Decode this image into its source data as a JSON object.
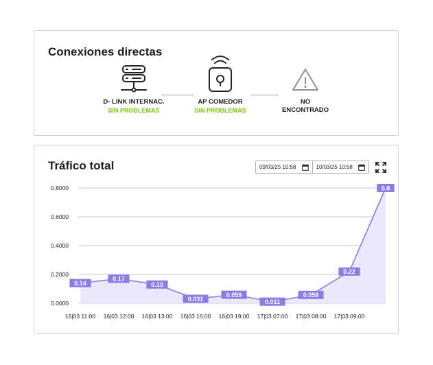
{
  "connections": {
    "title": "Conexiones directas",
    "devices": [
      {
        "name": "D- LINK INTERNAC.",
        "status": "SIN PROBLEMAS",
        "icon": "server-icon"
      },
      {
        "name": "AP COMEDOR",
        "status": "SIN PROBLEMAS",
        "icon": "wifi-lock-icon"
      },
      {
        "name": "NO ENCONTRADO",
        "status": "",
        "icon": "warning-icon"
      }
    ]
  },
  "traffic": {
    "title": "Tráfico total",
    "date_from": "09/03/25 10:58",
    "date_to": "10/03/25 10:58"
  },
  "colors": {
    "ok": "#7ac70c",
    "series": "#8b7ce8",
    "fill": "#ebe8fb"
  },
  "chart_data": {
    "type": "area",
    "categories": [
      "16|03 11:00",
      "16|03 12:00",
      "16|03 13:00",
      "16|03 15:00",
      "16|03 19:00",
      "17|03 07:00",
      "17|03 08:00",
      "17|03 09:00",
      ""
    ],
    "x_ticks": [
      "16|03 11:00",
      "16|03 12:00",
      "16|03 13:00",
      "16|03 15:00",
      "16|03 19:00",
      "17|03 07:00",
      "17|03 08:00",
      "17|03 09:00"
    ],
    "values": [
      0.14,
      0.17,
      0.13,
      0.031,
      0.059,
      0.011,
      0.058,
      0.22,
      0.8
    ],
    "labels": [
      "0.14",
      "0.17",
      "0.13",
      "0.031",
      "0.059",
      "0.011",
      "0.058",
      "0.22",
      "0.8"
    ],
    "y_ticks": [
      "0.0000",
      "0.2000",
      "0.4000",
      "0.6000",
      "0.8000"
    ],
    "ylim": [
      0,
      0.8
    ],
    "grid": true
  }
}
